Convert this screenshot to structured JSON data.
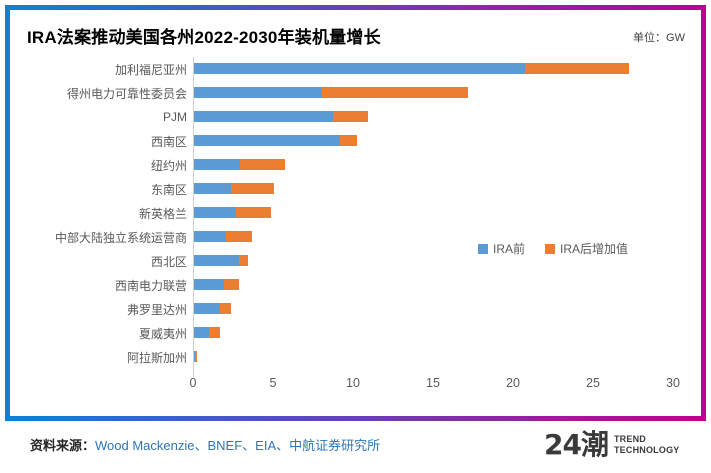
{
  "header": {
    "title": "IRA法案推动美国各州2022-2030年装机量增长",
    "unit_label": "单位：GW"
  },
  "chart_data": {
    "type": "bar",
    "orientation": "horizontal",
    "stacked": true,
    "title": "IRA法案推动美国各州2022-2030年装机量增长",
    "unit": "GW",
    "categories": [
      "加利福尼亚州",
      "得州电力可靠性委员会",
      "PJM",
      "西南区",
      "纽约州",
      "东南区",
      "新英格兰",
      "中部大陆独立系统运营商",
      "西北区",
      "西南电力联营",
      "弗罗里达州",
      "夏威夷州",
      "阿拉斯加州"
    ],
    "series": [
      {
        "name": "IRA前",
        "color": "#5B9BD5",
        "values": [
          20.7,
          8.0,
          8.7,
          9.1,
          2.9,
          2.3,
          2.6,
          2.0,
          2.8,
          1.9,
          1.6,
          0.95,
          0.05
        ]
      },
      {
        "name": "IRA后增加值",
        "color": "#ED7D31",
        "values": [
          6.5,
          9.1,
          2.2,
          1.1,
          2.8,
          2.7,
          2.2,
          1.6,
          0.55,
          0.9,
          0.7,
          0.7,
          0.15
        ]
      }
    ],
    "xlim": [
      0,
      30
    ],
    "xticks": [
      0,
      5,
      10,
      15,
      20,
      25,
      30
    ],
    "grid": false,
    "legend_position": "middle-right"
  },
  "footer": {
    "source_prefix": "资料来源：",
    "source_text": "Wood Mackenzie、BNEF、EIA、中航证券研究所",
    "logo_text": "24潮",
    "logo_sub1": "TREND",
    "logo_sub2": "TECHNOLOGY"
  },
  "colors": {
    "ira_before_blue": "#5B9BD5",
    "ira_added_orange": "#ED7D31",
    "frame_gradient_start": "#0D81D7",
    "frame_gradient_end": "#C2008C",
    "axis_text": "#595959",
    "source_link_blue": "#2E75B6"
  }
}
